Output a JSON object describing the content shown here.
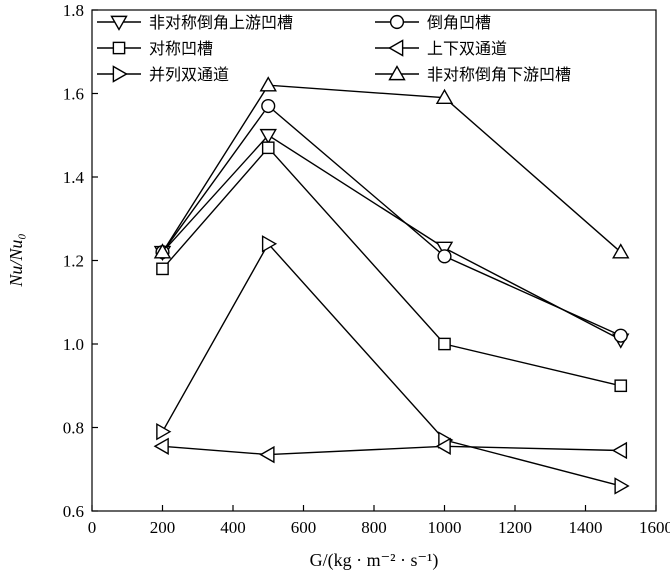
{
  "chart_data": {
    "type": "line",
    "xlabel": "G/(kg · m⁻² · s⁻¹)",
    "ylabel": "Nu/Nu₀",
    "xlim": [
      0,
      1600
    ],
    "ylim": [
      0.6,
      1.8
    ],
    "xticks": [
      0,
      200,
      400,
      600,
      800,
      1000,
      1200,
      1400,
      1600
    ],
    "yticks": [
      0.6,
      0.8,
      1.0,
      1.2,
      1.4,
      1.6,
      1.8
    ],
    "xtick_labels": [
      "0",
      "200",
      "400",
      "600",
      "800",
      "1000",
      "1200",
      "1400",
      "1600"
    ],
    "ytick_labels": [
      "0.6",
      "0.8",
      "1.0",
      "1.2",
      "1.4",
      "1.6",
      "1.8"
    ],
    "grid": false,
    "legend_position": "top",
    "x": [
      200,
      500,
      1000,
      1500
    ],
    "series": [
      {
        "name": "非对称倒角上游凹槽",
        "marker": "triangle-down",
        "values": [
          1.22,
          1.5,
          1.23,
          1.01
        ]
      },
      {
        "name": "对称凹槽",
        "marker": "square",
        "values": [
          1.18,
          1.47,
          1.0,
          0.9
        ]
      },
      {
        "name": "并列双通道",
        "marker": "triangle-right",
        "values": [
          0.79,
          1.24,
          0.77,
          0.66
        ]
      },
      {
        "name": "倒角凹槽",
        "marker": "circle",
        "values": [
          1.22,
          1.57,
          1.21,
          1.02
        ]
      },
      {
        "name": "上下双通道",
        "marker": "triangle-left",
        "values": [
          0.755,
          0.735,
          0.755,
          0.745
        ]
      },
      {
        "name": "非对称倒角下游凹槽",
        "marker": "triangle-up",
        "values": [
          1.22,
          1.62,
          1.59,
          1.22
        ]
      }
    ]
  }
}
